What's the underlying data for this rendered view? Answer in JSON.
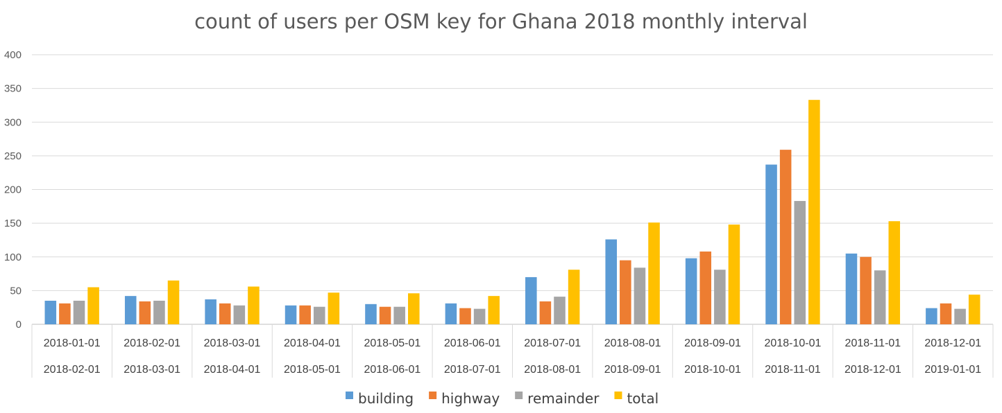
{
  "chart_data": {
    "type": "bar",
    "title": "count of users per OSM key for Ghana 2018 monthly interval",
    "xlabel": "",
    "ylabel": "",
    "ylim": [
      0,
      400
    ],
    "yticks": [
      0,
      50,
      100,
      150,
      200,
      250,
      300,
      350,
      400
    ],
    "grid": true,
    "legend_position": "bottom",
    "categories": [
      [
        "2018-01-01",
        "2018-02-01"
      ],
      [
        "2018-02-01",
        "2018-03-01"
      ],
      [
        "2018-03-01",
        "2018-04-01"
      ],
      [
        "2018-04-01",
        "2018-05-01"
      ],
      [
        "2018-05-01",
        "2018-06-01"
      ],
      [
        "2018-06-01",
        "2018-07-01"
      ],
      [
        "2018-07-01",
        "2018-08-01"
      ],
      [
        "2018-08-01",
        "2018-09-01"
      ],
      [
        "2018-09-01",
        "2018-10-01"
      ],
      [
        "2018-10-01",
        "2018-11-01"
      ],
      [
        "2018-11-01",
        "2018-12-01"
      ],
      [
        "2018-12-01",
        "2019-01-01"
      ]
    ],
    "series": [
      {
        "name": "building",
        "color": "#5B9BD5",
        "values": [
          35,
          42,
          37,
          28,
          30,
          31,
          70,
          126,
          98,
          237,
          105,
          24
        ]
      },
      {
        "name": "highway",
        "color": "#ED7D31",
        "values": [
          31,
          34,
          31,
          28,
          26,
          24,
          34,
          95,
          108,
          259,
          100,
          31
        ]
      },
      {
        "name": "remainder",
        "color": "#A5A5A5",
        "values": [
          35,
          35,
          28,
          26,
          26,
          23,
          41,
          84,
          81,
          183,
          80,
          23
        ]
      },
      {
        "name": "total",
        "color": "#FFC000",
        "values": [
          55,
          65,
          56,
          47,
          46,
          42,
          81,
          151,
          148,
          333,
          153,
          44
        ]
      }
    ]
  }
}
